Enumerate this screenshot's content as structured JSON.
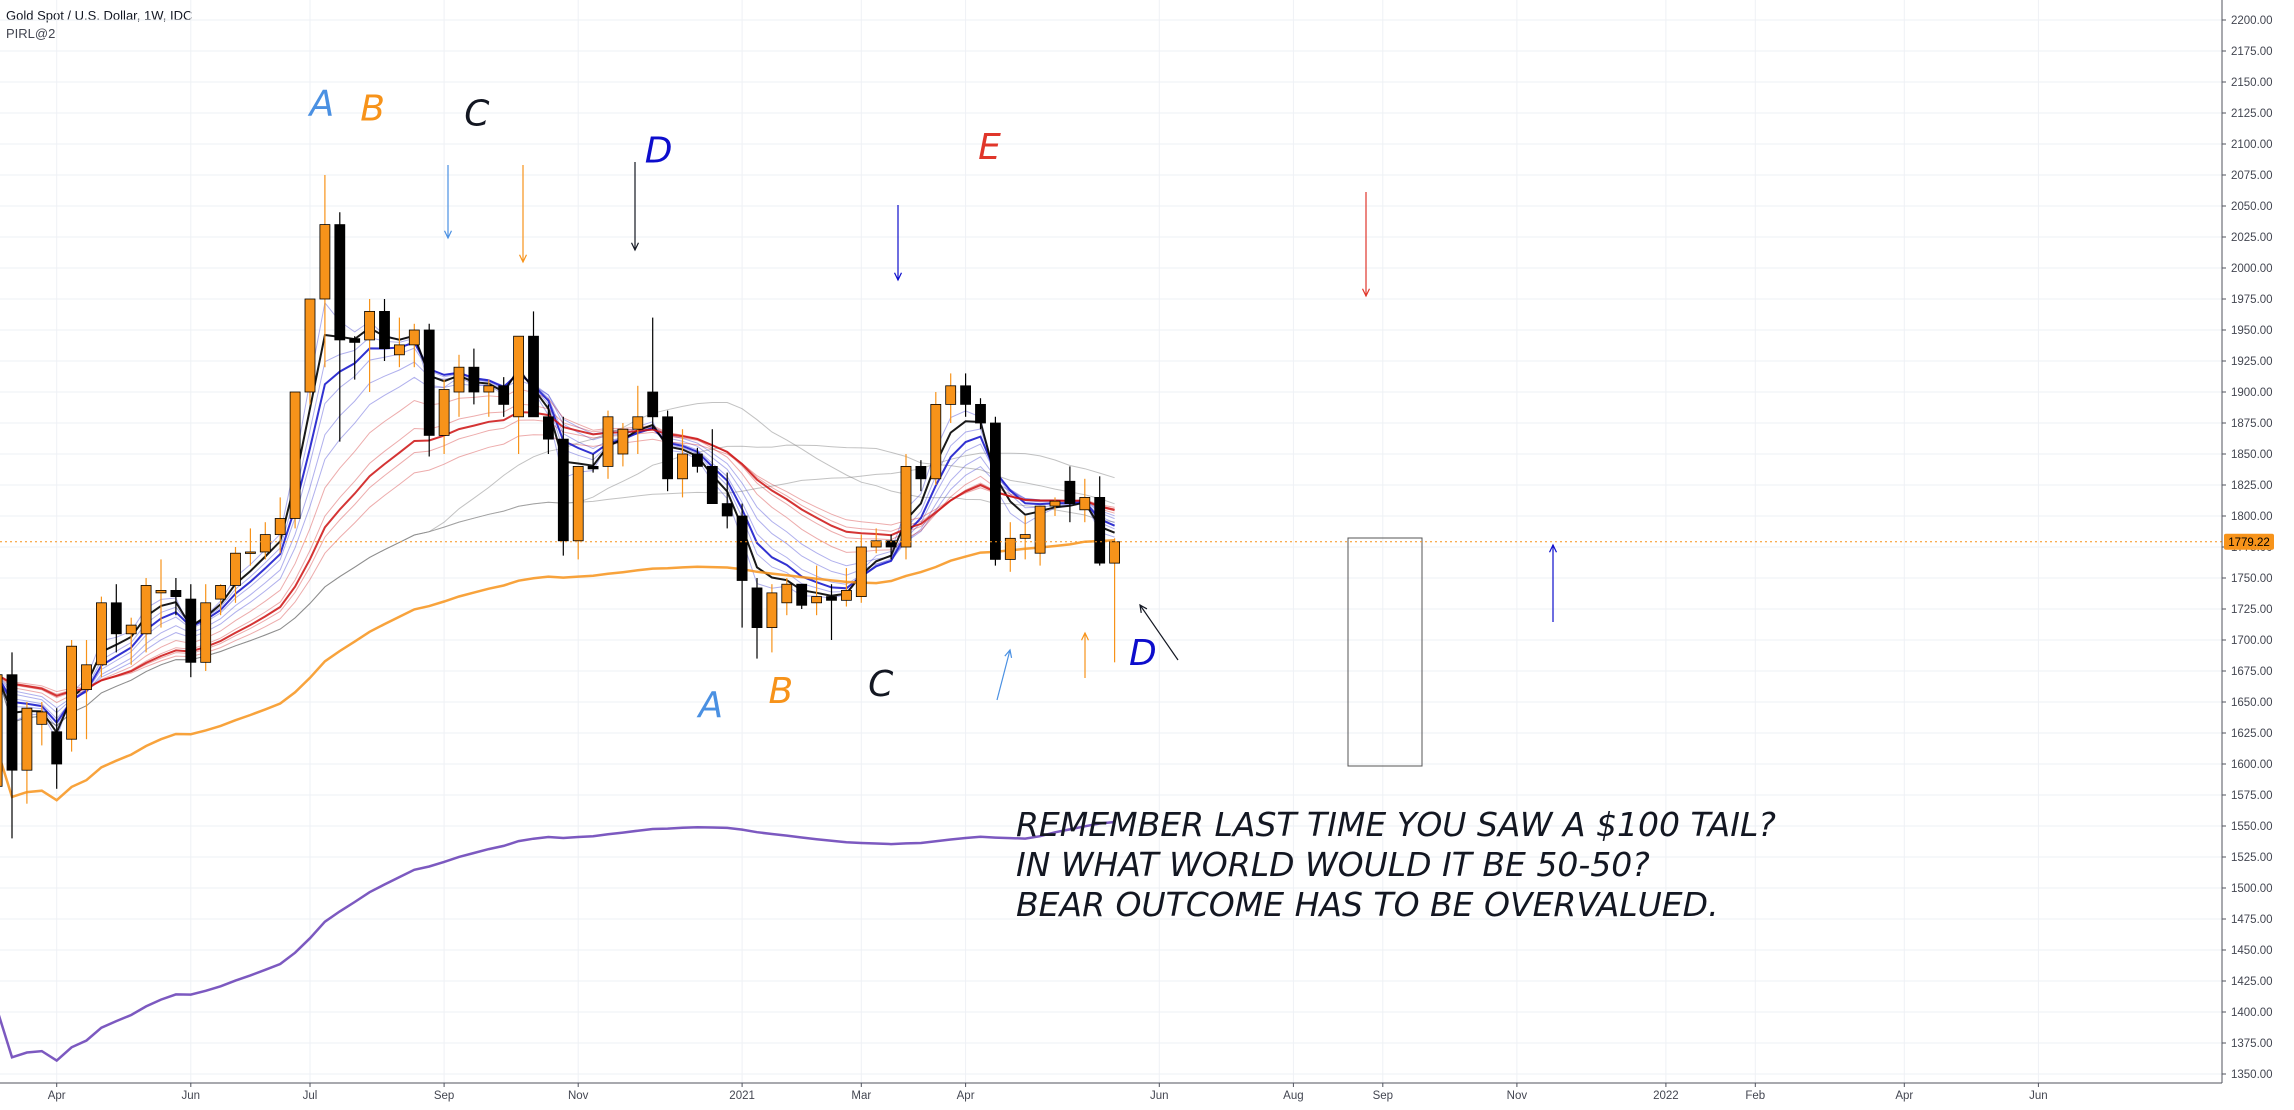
{
  "header": {
    "symbol_line": "Gold Spot / U.S. Dollar, 1W, IDC",
    "indicator_line": "PIRL@2"
  },
  "colors": {
    "bull_candle": "#f7931a",
    "bear_candle": "#000000",
    "grid": "#eef1f5",
    "axis_text": "#434651",
    "price_badge": "#f7931a",
    "price_line": "#f7931a",
    "label_A": "#4a90e2",
    "label_B": "#f7931a",
    "label_C": "#131722",
    "label_D": "#0d0dcc",
    "label_E": "#e0362a",
    "ma_blue": "#1c1ccc",
    "ma_red": "#cc1111",
    "ma_black": "#000000",
    "ma_orange": "#f7931a",
    "ma_purple": "#5b2fb0",
    "ma_gray": "#777777"
  },
  "chart_data": {
    "type": "candlestick",
    "title": "Gold Spot / U.S. Dollar, 1W, IDC",
    "indicator": "PIRL@2",
    "y_axis": {
      "ylim": [
        1340,
        2215
      ],
      "ticks": [
        1350,
        1375,
        1400,
        1425,
        1450,
        1475,
        1500,
        1525,
        1550,
        1575,
        1600,
        1625,
        1650,
        1675,
        1700,
        1725,
        1750,
        1775,
        1800,
        1825,
        1850,
        1875,
        1900,
        1925,
        1950,
        1975,
        2000,
        2025,
        2050,
        2075,
        2100,
        2125,
        2150,
        2175,
        2200
      ],
      "tick_labels": [
        "1350.00",
        "1375.00",
        "1400.00",
        "1425.00",
        "1450.00",
        "1475.00",
        "1500.00",
        "1525.00",
        "1550.00",
        "1575.00",
        "1600.00",
        "1625.00",
        "1650.00",
        "1675.00",
        "1700.00",
        "1725.00",
        "1750.00",
        "1775.00",
        "1800.00",
        "1825.00",
        "1850.00",
        "1875.00",
        "1900.00",
        "1925.00",
        "1950.00",
        "1975.00",
        "2000.00",
        "2025.00",
        "2050.00",
        "2075.00",
        "2100.00",
        "2125.00",
        "2150.00",
        "2175.00",
        "2200.00"
      ],
      "position": "right"
    },
    "x_axis": {
      "labels": [
        "Apr",
        "Jun",
        "Jul",
        "Sep",
        "Nov",
        "2021",
        "Mar",
        "Apr",
        "Jun",
        "Aug",
        "Sep",
        "Nov",
        "2022",
        "Feb",
        "Apr",
        "Jun"
      ],
      "label_week_index": [
        3,
        12,
        20,
        29,
        38,
        49,
        57,
        64,
        77,
        86,
        92,
        101,
        111,
        117,
        127,
        136
      ]
    },
    "last_price": {
      "value": 1779.22,
      "label": "1779.22"
    },
    "candles": {
      "columns": [
        "week_index",
        "open",
        "high",
        "low",
        "close"
      ],
      "rows": [
        [
          -1,
          1582,
          1690,
          1470,
          1672
        ],
        [
          0,
          1672,
          1690,
          1540,
          1595
        ],
        [
          1,
          1595,
          1650,
          1568,
          1645
        ],
        [
          2,
          1632,
          1650,
          1615,
          1642
        ],
        [
          3,
          1626,
          1645,
          1580,
          1600
        ],
        [
          4,
          1620,
          1700,
          1610,
          1695
        ],
        [
          5,
          1660,
          1700,
          1620,
          1680
        ],
        [
          6,
          1680,
          1735,
          1670,
          1730
        ],
        [
          7,
          1730,
          1745,
          1690,
          1705
        ],
        [
          8,
          1705,
          1718,
          1680,
          1712
        ],
        [
          9,
          1705,
          1750,
          1690,
          1744
        ],
        [
          10,
          1738,
          1765,
          1710,
          1740
        ],
        [
          11,
          1740,
          1750,
          1720,
          1735
        ],
        [
          12,
          1733,
          1745,
          1670,
          1682
        ],
        [
          13,
          1682,
          1745,
          1675,
          1730
        ],
        [
          14,
          1733,
          1745,
          1720,
          1744
        ],
        [
          15,
          1744,
          1775,
          1730,
          1770
        ],
        [
          16,
          1770,
          1790,
          1760,
          1771
        ],
        [
          17,
          1771,
          1795,
          1765,
          1785
        ],
        [
          18,
          1785,
          1815,
          1770,
          1798
        ],
        [
          19,
          1798,
          1900,
          1790,
          1900
        ],
        [
          20,
          1900,
          1975,
          1890,
          1975
        ],
        [
          21,
          1975,
          2075,
          1920,
          2035
        ],
        [
          22,
          2035,
          2045,
          1860,
          1942
        ],
        [
          23,
          1943,
          1945,
          1910,
          1940
        ],
        [
          24,
          1942,
          1975,
          1900,
          1965
        ],
        [
          25,
          1965,
          1975,
          1925,
          1935
        ],
        [
          26,
          1930,
          1960,
          1920,
          1938
        ],
        [
          27,
          1938,
          1955,
          1920,
          1950
        ],
        [
          28,
          1950,
          1955,
          1848,
          1865
        ],
        [
          29,
          1865,
          1910,
          1850,
          1902
        ],
        [
          30,
          1900,
          1930,
          1880,
          1920
        ],
        [
          31,
          1920,
          1935,
          1890,
          1900
        ],
        [
          32,
          1900,
          1910,
          1880,
          1905
        ],
        [
          33,
          1905,
          1912,
          1880,
          1890
        ],
        [
          34,
          1880,
          1920,
          1850,
          1945
        ],
        [
          35,
          1945,
          1965,
          1880,
          1880
        ],
        [
          36,
          1880,
          1890,
          1850,
          1862
        ],
        [
          37,
          1862,
          1880,
          1768,
          1780
        ],
        [
          38,
          1780,
          1840,
          1765,
          1840
        ],
        [
          39,
          1840,
          1850,
          1835,
          1838
        ],
        [
          40,
          1840,
          1885,
          1830,
          1880
        ],
        [
          41,
          1850,
          1875,
          1840,
          1870
        ],
        [
          42,
          1870,
          1905,
          1850,
          1880
        ],
        [
          43,
          1900,
          1960,
          1870,
          1880
        ],
        [
          44,
          1880,
          1885,
          1820,
          1830
        ],
        [
          45,
          1830,
          1870,
          1815,
          1850
        ],
        [
          46,
          1850,
          1855,
          1835,
          1840
        ],
        [
          47,
          1840,
          1870,
          1810,
          1810
        ],
        [
          48,
          1810,
          1835,
          1790,
          1800
        ],
        [
          49,
          1800,
          1810,
          1710,
          1748
        ],
        [
          50,
          1742,
          1750,
          1685,
          1710
        ],
        [
          51,
          1710,
          1745,
          1690,
          1738
        ],
        [
          52,
          1730,
          1750,
          1720,
          1745
        ],
        [
          53,
          1745,
          1745,
          1725,
          1728
        ],
        [
          54,
          1730,
          1760,
          1720,
          1735
        ],
        [
          55,
          1735,
          1745,
          1700,
          1732
        ],
        [
          56,
          1732,
          1758,
          1727,
          1740
        ],
        [
          57,
          1735,
          1785,
          1730,
          1775
        ],
        [
          58,
          1775,
          1790,
          1770,
          1780
        ],
        [
          59,
          1780,
          1785,
          1765,
          1775
        ],
        [
          60,
          1775,
          1850,
          1765,
          1840
        ],
        [
          61,
          1840,
          1845,
          1820,
          1830
        ],
        [
          62,
          1830,
          1900,
          1825,
          1890
        ],
        [
          63,
          1890,
          1915,
          1875,
          1905
        ],
        [
          64,
          1905,
          1915,
          1880,
          1890
        ],
        [
          65,
          1890,
          1895,
          1870,
          1875
        ],
        [
          66,
          1875,
          1880,
          1760,
          1765
        ],
        [
          67,
          1765,
          1795,
          1755,
          1782
        ],
        [
          68,
          1782,
          1800,
          1765,
          1785
        ],
        [
          69,
          1770,
          1808,
          1760,
          1808
        ],
        [
          70,
          1808,
          1815,
          1800,
          1812
        ],
        [
          71,
          1828,
          1840,
          1795,
          1810
        ],
        [
          72,
          1805,
          1830,
          1795,
          1815
        ],
        [
          73,
          1815,
          1832,
          1760,
          1762
        ],
        [
          74,
          1762,
          1782,
          1682,
          1779.22
        ]
      ]
    },
    "annotations": [
      {
        "text": "A",
        "color_key": "label_A",
        "week_index": 20.8,
        "price": 2123
      },
      {
        "text": "B",
        "color_key": "label_B",
        "week_index": 24.2,
        "price": 2119
      },
      {
        "text": "C",
        "color_key": "label_C",
        "week_index": 31.2,
        "price": 2115
      },
      {
        "text": "D",
        "color_key": "label_D",
        "week_index": 43.4,
        "price": 2085
      },
      {
        "text": "E",
        "color_key": "label_E",
        "week_index": 65.6,
        "price": 2088
      },
      {
        "text": "A",
        "color_key": "label_A",
        "week_index": 46.9,
        "price": 1638
      },
      {
        "text": "B",
        "color_key": "label_B",
        "week_index": 51.6,
        "price": 1649
      },
      {
        "text": "C",
        "color_key": "label_C",
        "week_index": 58.3,
        "price": 1655
      },
      {
        "text": "D",
        "color_key": "label_D",
        "week_index": 75.9,
        "price": 1680
      }
    ],
    "note_lines": [
      "REMEMBER LAST TIME YOU SAW A $100 TAIL?",
      "IN WHAT WORLD WOULD IT BE 50-50?",
      "BEAR OUTCOME HAS TO BE OVERVALUED."
    ],
    "grid": true,
    "legend": "none"
  }
}
